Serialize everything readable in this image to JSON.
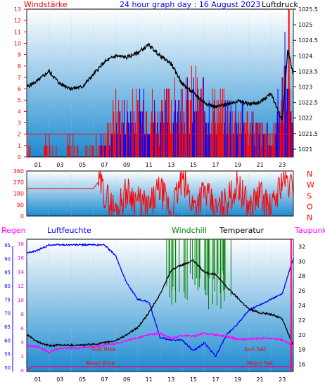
{
  "header": {
    "left_title": "Windstärke",
    "center_title": "24 hour graph day : 16 August 2023",
    "right_title": "Luftdruck"
  },
  "lower_header": {
    "rain": "Regen",
    "humidity": "Luftfeuchte",
    "windchill": "Windchill",
    "temperature": "Temperatur",
    "dewpoint": "Taupunkt"
  },
  "annotations": {
    "sun_rise": "Sun Rise",
    "sun_set": "Sun Set",
    "moon_rise": "Moon Rise",
    "moon_set": "Moon Set"
  },
  "colors": {
    "wind": "#ff0000",
    "gust_blue": "#0000ff",
    "pressure": "#000000",
    "humidity": "#0000ff",
    "temperature": "#000000",
    "dewpoint": "#ff00ff",
    "windchill": "#008000",
    "rain": "#ff0080",
    "bg_top": "#ffffff",
    "bg_bottom": "#1e8bd0"
  },
  "chart_data": [
    {
      "type": "line",
      "name": "wind_pressure",
      "x_tick_labels": [
        "01",
        "03",
        "05",
        "07",
        "09",
        "11",
        "13",
        "15",
        "17",
        "19",
        "21",
        "23"
      ],
      "left_axis": {
        "label": "Windstärke",
        "ticks": [
          "13",
          "12",
          "11",
          "10",
          "9",
          "8",
          "7",
          "6",
          "5",
          "4",
          "3",
          "2",
          "1",
          "0"
        ],
        "ylim": [
          0,
          13
        ]
      },
      "right_axis": {
        "label": "Luftdruck",
        "ticks": [
          "1025.5",
          "1025",
          "1024.5",
          "1024",
          "1023.5",
          "1023",
          "1022.5",
          "1022",
          "1021.5",
          "1021"
        ],
        "ylim": [
          1020.75,
          1025.5
        ]
      },
      "series": [
        {
          "axis": "right",
          "x_hours": [
            0,
            1,
            2,
            3,
            4,
            5,
            6,
            7,
            8,
            9,
            10,
            11,
            12,
            13,
            14,
            15,
            16,
            17,
            18,
            19,
            20,
            21,
            22,
            23,
            23.5,
            24
          ],
          "values": [
            1023.0,
            1023.2,
            1023.5,
            1023.1,
            1022.95,
            1023.0,
            1023.4,
            1023.8,
            1024.0,
            1023.95,
            1024.1,
            1024.35,
            1024.0,
            1023.75,
            1023.1,
            1022.8,
            1022.5,
            1022.35,
            1022.45,
            1022.55,
            1022.45,
            1022.5,
            1022.8,
            1021.9,
            1024.2,
            1023.4
          ]
        },
        {
          "axis": "left",
          "x_hours": [
            0,
            1,
            2,
            3,
            4,
            5,
            6,
            7,
            8,
            9,
            10,
            11,
            12,
            13,
            14,
            15,
            16,
            17,
            18,
            19,
            20,
            21,
            22,
            23,
            23.5,
            24
          ],
          "values": [
            2,
            0,
            2,
            0,
            2,
            0,
            2,
            2,
            5,
            5,
            5,
            6,
            4,
            6,
            5,
            7,
            6,
            6,
            5,
            5,
            4,
            3,
            2,
            7,
            13,
            2
          ]
        }
      ]
    },
    {
      "type": "line",
      "name": "wind_direction",
      "right_axis": {
        "ticks": [
          "N",
          "W",
          "S",
          "O",
          "N"
        ]
      },
      "left_axis": {
        "ticks": [
          "360",
          "270",
          "180",
          "90",
          "0"
        ],
        "ylim": [
          0,
          360
        ]
      },
      "x_hours": [
        0,
        6,
        6.5,
        7,
        8,
        9,
        10,
        11,
        12,
        13,
        14,
        15,
        16,
        17,
        18,
        19,
        20,
        21,
        22,
        23,
        24
      ],
      "values": [
        220,
        220,
        280,
        180,
        40,
        200,
        120,
        60,
        220,
        30,
        300,
        80,
        200,
        40,
        120,
        250,
        60,
        180,
        40,
        300,
        220
      ]
    },
    {
      "type": "line",
      "name": "humidity_temperature",
      "x_tick_labels": [
        "01",
        "03",
        "05",
        "07",
        "09",
        "11",
        "13",
        "15",
        "17",
        "19",
        "21",
        "23"
      ],
      "left_axis_rain": {
        "ticks": [
          "18",
          "16",
          "14",
          "12",
          "10",
          "8",
          "6",
          "4",
          "2",
          "0"
        ],
        "ylim": [
          0,
          18
        ]
      },
      "left_axis_humidity": {
        "ticks": [
          "95",
          "90",
          "85",
          "80",
          "75",
          "70",
          "65",
          "60",
          "55",
          "50"
        ],
        "ylim": [
          50,
          95
        ]
      },
      "right_axis": {
        "ticks": [
          "32",
          "30",
          "28",
          "26",
          "24",
          "22",
          "20",
          "18",
          "16"
        ],
        "ylim": [
          15,
          33
        ]
      },
      "series": [
        {
          "axis": "humidity",
          "x_hours": [
            0,
            1,
            2,
            3,
            4,
            5,
            6,
            7,
            8,
            9,
            10,
            11,
            12,
            13,
            14,
            15,
            16,
            17,
            18,
            19,
            20,
            21,
            22,
            23,
            24
          ],
          "values": [
            92,
            93,
            95,
            95,
            95,
            95,
            95,
            95,
            91,
            81,
            75,
            74,
            61,
            60,
            60,
            56,
            59,
            54,
            62,
            66,
            71,
            73,
            75,
            77,
            90
          ]
        },
        {
          "axis": "temperature",
          "x_hours": [
            0,
            1,
            2,
            3,
            4,
            5,
            6,
            7,
            8,
            9,
            10,
            11,
            12,
            13,
            14,
            15,
            16,
            17,
            18,
            19,
            20,
            21,
            22,
            23,
            24
          ],
          "values": [
            20,
            19,
            18.5,
            18.6,
            18.6,
            18.6,
            18.7,
            18.9,
            19.2,
            20,
            21,
            23,
            25.5,
            28.8,
            29.5,
            30.1,
            28.5,
            28.2,
            26.5,
            25,
            23.5,
            23,
            22.8,
            22.2,
            18.5
          ]
        },
        {
          "axis": "temperature",
          "x_hours": [
            0,
            1,
            2,
            3,
            4,
            5,
            6,
            7,
            8,
            9,
            10,
            11,
            12,
            13,
            14,
            15,
            16,
            17,
            18,
            19,
            20,
            21,
            22,
            23,
            24
          ],
          "values": [
            18.5,
            18.4,
            17.6,
            18.2,
            18.2,
            18.2,
            18.4,
            18.6,
            18.8,
            19.2,
            19.6,
            20,
            20.2,
            19.5,
            19.9,
            19.8,
            20.2,
            20,
            19.8,
            19.4,
            19.4,
            19.5,
            19.5,
            19.3,
            18.5
          ]
        },
        {
          "axis": "rain",
          "x_hours": [
            0,
            0.5,
            24
          ],
          "values": [
            0,
            0.5,
            0.5
          ]
        }
      ]
    }
  ]
}
